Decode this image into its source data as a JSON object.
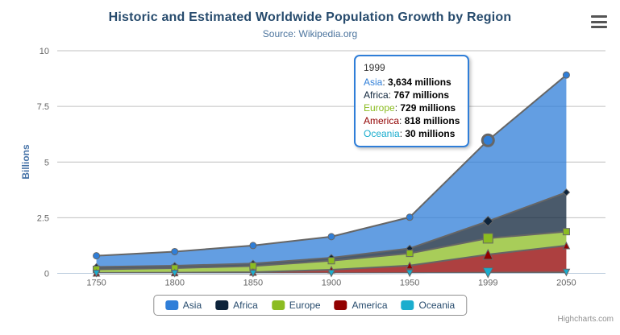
{
  "header": {
    "title": "Historic and Estimated Worldwide Population Growth by Region",
    "subtitle": "Source: Wikipedia.org"
  },
  "icons": {
    "menu": "hamburger-icon"
  },
  "credits": "Highcharts.com",
  "chart_data": {
    "type": "area",
    "stacking": "normal",
    "categories": [
      "1750",
      "1800",
      "1850",
      "1900",
      "1950",
      "1999",
      "2050"
    ],
    "series": [
      {
        "name": "Asia",
        "color": "#2f7ed8",
        "marker": "circle",
        "values": [
          502,
          635,
          809,
          947,
          1402,
          3634,
          5268
        ]
      },
      {
        "name": "Africa",
        "color": "#0d233a",
        "marker": "diamond",
        "values": [
          106,
          107,
          111,
          133,
          221,
          767,
          1766
        ]
      },
      {
        "name": "Europe",
        "color": "#8bbc21",
        "marker": "square",
        "values": [
          163,
          203,
          276,
          408,
          547,
          729,
          628
        ]
      },
      {
        "name": "America",
        "color": "#910000",
        "marker": "triangle",
        "values": [
          18,
          31,
          54,
          156,
          339,
          818,
          1201
        ]
      },
      {
        "name": "Oceania",
        "color": "#1aadce",
        "marker": "triangle-down",
        "values": [
          2,
          2,
          2,
          6,
          13,
          30,
          46
        ]
      }
    ],
    "values_unit": "millions",
    "ylabel": "Billions",
    "xlabel": "",
    "yticks": [
      0,
      2.5,
      5,
      7.5,
      10
    ],
    "ylim": [
      0,
      10
    ],
    "grid": true,
    "legend_position": "bottom",
    "hover_index": 5,
    "hover_series": "Asia",
    "style": {
      "grid_color": "#C0C0C0",
      "axis_line_color": "#C0D0E0",
      "axis_label_color": "#666666",
      "series_line_color": "#666666",
      "fill_opacity": 0.75
    }
  },
  "tooltip": {
    "header": "1999",
    "rows": [
      {
        "name": "Asia",
        "value": "3,634 millions"
      },
      {
        "name": "Africa",
        "value": "767 millions"
      },
      {
        "name": "Europe",
        "value": "729 millions"
      },
      {
        "name": "America",
        "value": "818 millions"
      },
      {
        "name": "Oceania",
        "value": "30 millions"
      }
    ]
  }
}
